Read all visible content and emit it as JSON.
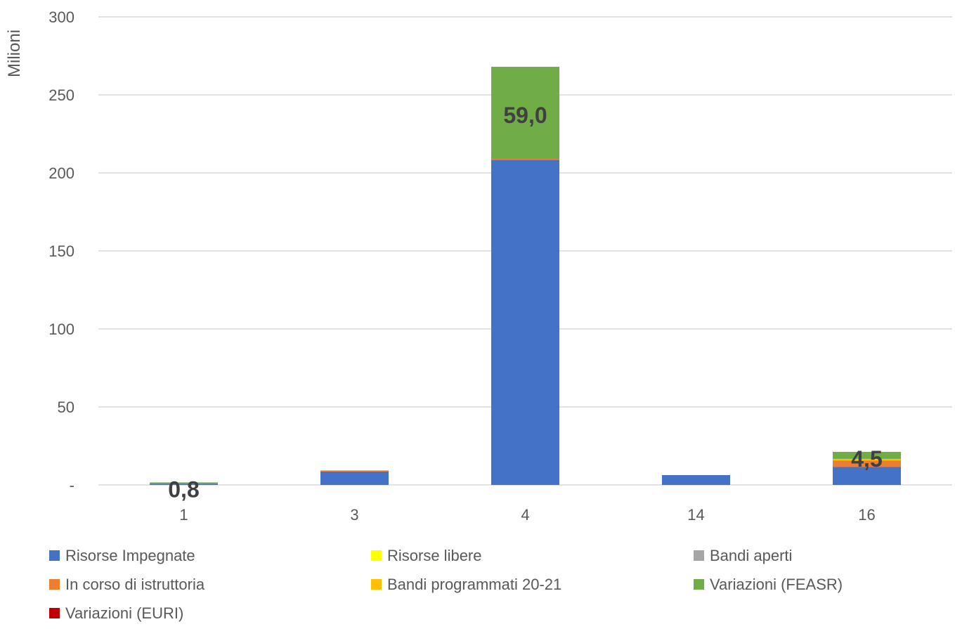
{
  "chart_data": {
    "type": "bar",
    "stacked": true,
    "ylabel": "Milioni",
    "xlabel": "",
    "ylim": [
      0,
      300
    ],
    "yticks": [
      {
        "value": 0,
        "label": "-"
      },
      {
        "value": 50,
        "label": "50"
      },
      {
        "value": 100,
        "label": "100"
      },
      {
        "value": 150,
        "label": "150"
      },
      {
        "value": 200,
        "label": "200"
      },
      {
        "value": 250,
        "label": "250"
      },
      {
        "value": 300,
        "label": "300"
      }
    ],
    "grid": true,
    "legend_position": "bottom",
    "categories": [
      "1",
      "3",
      "4",
      "14",
      "16"
    ],
    "series": [
      {
        "name": "Risorse Impegnate",
        "color": "#4472C4",
        "values": [
          0.8,
          8.6,
          208.3,
          6.3,
          11.5
        ]
      },
      {
        "name": "Risorse libere",
        "color": "#FFFF00",
        "values": [
          0,
          0,
          0,
          0,
          0
        ]
      },
      {
        "name": "Bandi aperti",
        "color": "#A5A5A5",
        "values": [
          0,
          0,
          0,
          0,
          0
        ]
      },
      {
        "name": "In corso di istruttoria",
        "color": "#ED7D31",
        "values": [
          0,
          0.7,
          0.7,
          0,
          4.2
        ]
      },
      {
        "name": "Bandi programmati 20-21",
        "color": "#FFC000",
        "values": [
          0,
          0,
          0,
          0,
          1.0
        ]
      },
      {
        "name": "Variazioni  (FEASR)",
        "color": "#70AD47",
        "values": [
          0.8,
          0,
          59.0,
          0,
          4.5
        ]
      },
      {
        "name": "Variazioni (EURI)",
        "color": "#C00000",
        "values": [
          0,
          0,
          0,
          0,
          0
        ]
      }
    ],
    "data_labels": [
      {
        "category": "1",
        "series": "Variazioni  (FEASR)",
        "text": "0,8"
      },
      {
        "category": "4",
        "series": "Variazioni  (FEASR)",
        "text": "59,0"
      },
      {
        "category": "16",
        "series": "Variazioni  (FEASR)",
        "text": "4,5"
      }
    ]
  }
}
